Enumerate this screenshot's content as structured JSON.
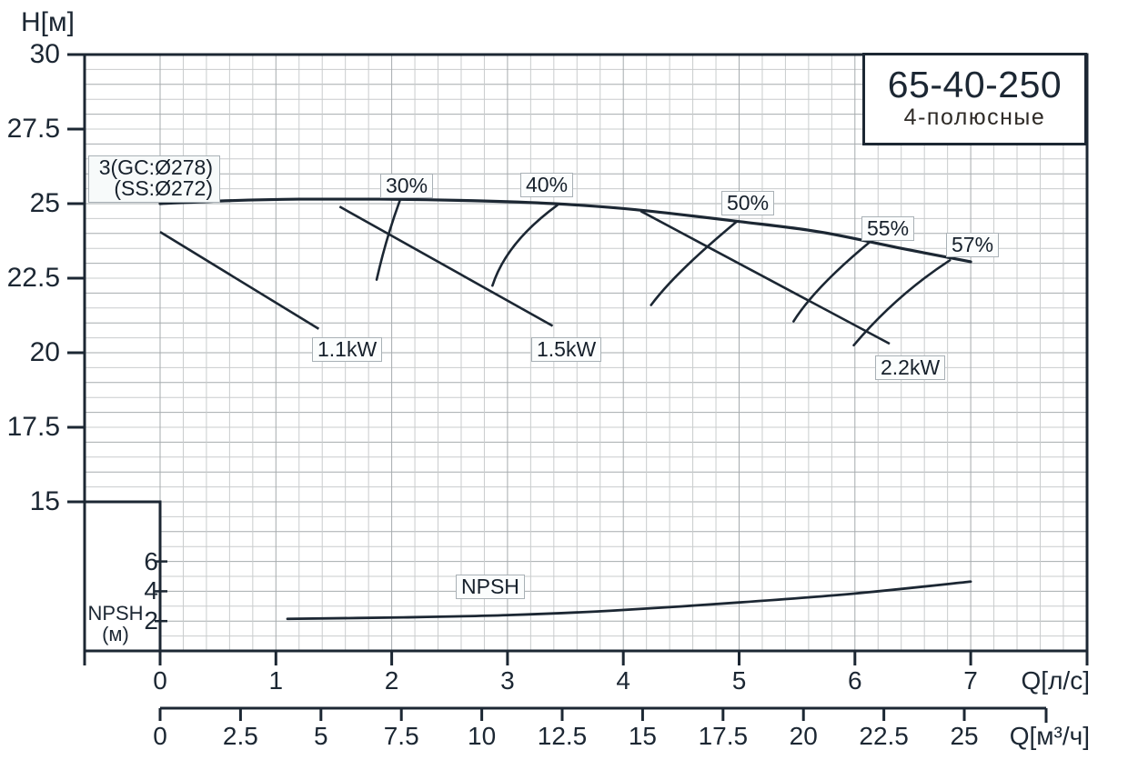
{
  "title_box": {
    "model": "65-40-250",
    "poles": "4-полюсные"
  },
  "impeller_label": {
    "line1": "3(GC:Ø278)",
    "line2": "(SS:Ø272)"
  },
  "y_axis": {
    "title": "H[м]",
    "tick_labels": [
      "30",
      "27.5",
      "25",
      "22.5",
      "20",
      "17.5",
      "15"
    ],
    "tick_values": [
      30,
      27.5,
      25,
      22.5,
      20,
      17.5,
      15
    ]
  },
  "x_axis_primary": {
    "unit": "Q[л/с]",
    "tick_labels": [
      "0",
      "1",
      "2",
      "3",
      "4",
      "5",
      "6",
      "7"
    ],
    "tick_values": [
      0,
      1,
      2,
      3,
      4,
      5,
      6,
      7
    ]
  },
  "x_axis_secondary": {
    "unit": "Q[м³/ч]",
    "tick_labels": [
      "0",
      "2.5",
      "5",
      "7.5",
      "10",
      "12.5",
      "15",
      "17.5",
      "20",
      "22.5",
      "25"
    ],
    "tick_values": [
      0,
      2.5,
      5,
      7.5,
      10,
      12.5,
      15,
      17.5,
      20,
      22.5,
      25
    ]
  },
  "npsh_axis": {
    "title_line1": "NPSH",
    "title_line2": "(м)",
    "tick_labels": [
      "6",
      "4",
      "2"
    ],
    "tick_values": [
      6,
      4,
      2
    ]
  },
  "colors": {
    "curve": "#1c2733",
    "grid_minor": "#c9cccd",
    "grid_major": "#a6abae",
    "chip_border": "#a9b1b6",
    "chip_bg": "#fbfdfd"
  },
  "chart_data": {
    "type": "line",
    "title": "65-40-250 4-полюсные — pump performance curves",
    "xlabel_primary": "Q[л/с]",
    "xlabel_secondary": "Q[м³/ч]",
    "ylabel": "H[м]",
    "x_range_lps": [
      0,
      8
    ],
    "y_range_m": [
      10,
      30
    ],
    "grid": "on",
    "head_curve": {
      "name": "3(GC:Ø278)(SS:Ø272)",
      "points_q_h": [
        [
          0,
          25.0
        ],
        [
          0.6,
          25.1
        ],
        [
          1.2,
          25.15
        ],
        [
          1.9,
          25.15
        ],
        [
          2.7,
          25.1
        ],
        [
          3.4,
          25.0
        ],
        [
          4.1,
          24.8
        ],
        [
          5.0,
          24.4
        ],
        [
          5.7,
          24.05
        ],
        [
          6.4,
          23.5
        ],
        [
          7.0,
          23.05
        ]
      ]
    },
    "efficiency_curves": [
      {
        "label": "30%",
        "points_q_h": [
          [
            2.07,
            25.1
          ],
          [
            1.96,
            23.8
          ],
          [
            1.87,
            22.45
          ]
        ]
      },
      {
        "label": "40%",
        "points_q_h": [
          [
            3.43,
            24.95
          ],
          [
            3.07,
            23.65
          ],
          [
            2.87,
            22.25
          ]
        ]
      },
      {
        "label": "50%",
        "points_q_h": [
          [
            4.98,
            24.4
          ],
          [
            4.53,
            22.85
          ],
          [
            4.24,
            21.6
          ]
        ]
      },
      {
        "label": "55%",
        "points_q_h": [
          [
            6.14,
            23.75
          ],
          [
            5.73,
            22.3
          ],
          [
            5.47,
            21.05
          ]
        ]
      },
      {
        "label": "57%",
        "points_q_h": [
          [
            6.82,
            23.1
          ],
          [
            6.38,
            21.8
          ],
          [
            5.99,
            20.25
          ]
        ]
      }
    ],
    "power_curves": [
      {
        "label": "1.1kW",
        "points_q_h": [
          [
            0,
            24.05
          ],
          [
            1.37,
            20.8
          ]
        ]
      },
      {
        "label": "1.5kW",
        "points_q_h": [
          [
            1.55,
            24.9
          ],
          [
            3.39,
            20.9
          ]
        ]
      },
      {
        "label": "2.2kW",
        "points_q_h": [
          [
            4.15,
            24.75
          ],
          [
            6.3,
            20.3
          ]
        ]
      }
    ],
    "npsh_curve": {
      "label": "NPSH",
      "points_q_npsh": [
        [
          1.1,
          2.15
        ],
        [
          2.1,
          2.25
        ],
        [
          3.0,
          2.4
        ],
        [
          3.9,
          2.7
        ],
        [
          5.0,
          3.25
        ],
        [
          6.0,
          3.85
        ],
        [
          7.0,
          4.65
        ]
      ]
    }
  }
}
